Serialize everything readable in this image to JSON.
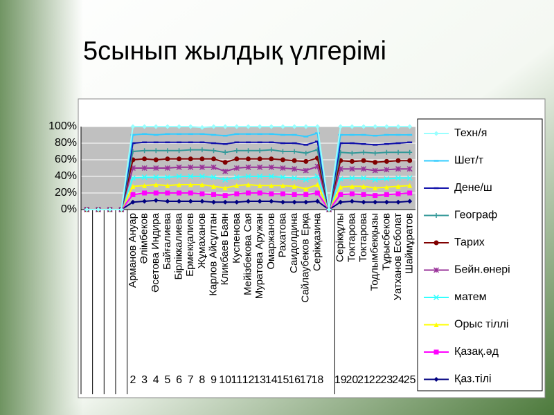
{
  "chart_data": {
    "type": "line",
    "stacked": true,
    "title": "5сынып жылдық үлгерімі",
    "categories": [
      null,
      null,
      null,
      null,
      "Арманов Ануар",
      "Әлімбеков",
      "Әсетова Индира",
      "Байғалиева",
      "Бірліккалиева",
      "Ермекқалиев",
      "Жұмаханов",
      "Карлов Айсұлтан",
      "Кликбаев Баян",
      "Куспенова",
      "Мейізбекова Сая",
      "Муратова Аружан",
      "Омаржанов",
      "Рахатова",
      "Саидолдина",
      "Сайлаубеков Ерқа",
      "Серікқазина",
      null,
      "Серікқұлы",
      "Токтарова",
      "Токтарова",
      "Тодлымбекқызы",
      "Тұрысбеков",
      "Уатханов Есболат",
      "Шаймұратов"
    ],
    "groups": [
      null,
      null,
      null,
      null,
      2,
      3,
      4,
      5,
      6,
      7,
      8,
      9,
      10,
      11,
      12,
      13,
      14,
      15,
      16,
      17,
      18,
      null,
      19,
      20,
      21,
      22,
      23,
      24,
      25
    ],
    "ylim": [
      0,
      100
    ],
    "yticks": [
      {
        "value": 0,
        "label": "0%"
      },
      {
        "value": 20,
        "label": "20%"
      },
      {
        "value": 40,
        "label": "40%"
      },
      {
        "value": 60,
        "label": "60%"
      },
      {
        "value": 80,
        "label": "80%"
      },
      {
        "value": 100,
        "label": "100%"
      }
    ],
    "grid": true,
    "legend": "right",
    "series": [
      {
        "name": "Қаз.тілі",
        "color": "#000080",
        "marker": "diamond",
        "values": [
          0,
          0,
          0,
          0,
          9,
          10,
          11,
          10,
          10,
          10,
          10,
          9,
          9,
          9,
          10,
          10,
          10,
          9,
          9,
          9,
          10,
          0,
          9,
          10,
          9,
          9,
          9,
          9,
          10
        ]
      },
      {
        "name": "Қазақ.әд",
        "color": "#ff00ff",
        "marker": "square",
        "values": [
          0,
          0,
          0,
          0,
          9,
          10,
          9,
          10,
          10,
          10,
          9,
          9,
          8,
          10,
          10,
          10,
          9,
          10,
          9,
          9,
          10,
          0,
          9,
          9,
          9,
          8,
          9,
          10,
          10
        ]
      },
      {
        "name": "Орыс тіллі",
        "color": "#ffff00",
        "marker": "triangle",
        "values": [
          0,
          0,
          0,
          0,
          10,
          9,
          10,
          9,
          10,
          10,
          11,
          10,
          9,
          10,
          10,
          9,
          10,
          10,
          10,
          7,
          10,
          0,
          9,
          9,
          10,
          9,
          9,
          9,
          9
        ]
      },
      {
        "name": "матем",
        "color": "#33ffff",
        "marker": "x",
        "values": [
          0,
          0,
          0,
          0,
          10,
          10,
          9,
          10,
          10,
          10,
          10,
          11,
          10,
          10,
          10,
          11,
          11,
          10,
          10,
          11,
          10,
          0,
          10,
          10,
          10,
          10,
          10,
          10,
          9
        ]
      },
      {
        "name": "Бейн.өнері",
        "color": "#993399",
        "marker": "star",
        "values": [
          0,
          0,
          0,
          0,
          12,
          11,
          11,
          11,
          11,
          11,
          11,
          12,
          10,
          11,
          11,
          11,
          11,
          11,
          11,
          11,
          12,
          0,
          12,
          11,
          11,
          11,
          11,
          11,
          11
        ]
      },
      {
        "name": "Тарих",
        "color": "#800000",
        "marker": "circle",
        "values": [
          0,
          0,
          0,
          0,
          10,
          11,
          10,
          11,
          10,
          10,
          10,
          10,
          11,
          11,
          10,
          10,
          10,
          10,
          10,
          11,
          10,
          0,
          10,
          9,
          10,
          10,
          10,
          10,
          10
        ]
      },
      {
        "name": "Географ",
        "color": "#339999",
        "marker": "plus",
        "values": [
          0,
          0,
          0,
          0,
          10,
          10,
          11,
          10,
          10,
          11,
          11,
          10,
          12,
          10,
          10,
          10,
          11,
          10,
          11,
          10,
          10,
          0,
          10,
          10,
          10,
          11,
          11,
          10,
          10
        ]
      },
      {
        "name": "Дене/ш",
        "color": "#1111aa",
        "marker": "dash",
        "values": [
          0,
          0,
          0,
          0,
          10,
          10,
          10,
          10,
          10,
          9,
          9,
          9,
          10,
          10,
          10,
          10,
          9,
          10,
          10,
          10,
          10,
          0,
          11,
          12,
          10,
          10,
          10,
          11,
          12
        ]
      },
      {
        "name": "Шет/т",
        "color": "#33ccff",
        "marker": "dash",
        "values": [
          0,
          0,
          0,
          0,
          10,
          10,
          9,
          10,
          10,
          10,
          10,
          10,
          10,
          10,
          10,
          10,
          10,
          10,
          10,
          10,
          10,
          0,
          10,
          10,
          11,
          11,
          11,
          10,
          9
        ]
      },
      {
        "name": "Техн/я",
        "color": "#99ffff",
        "marker": "diamond",
        "values": [
          0,
          0,
          0,
          0,
          10,
          9,
          10,
          9,
          9,
          9,
          8,
          10,
          11,
          9,
          9,
          9,
          9,
          10,
          10,
          12,
          8,
          0,
          10,
          10,
          10,
          11,
          10,
          10,
          10
        ]
      }
    ]
  }
}
